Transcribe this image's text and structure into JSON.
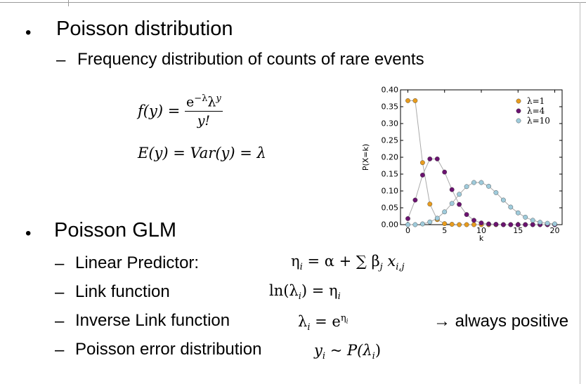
{
  "bullets": [
    {
      "title": "Poisson distribution",
      "sub": [
        "Frequency distribution of counts of rare events"
      ]
    },
    {
      "title": "Poisson GLM",
      "sub": [
        "Linear Predictor:",
        "Link function",
        "Inverse Link function",
        "Poisson error distribution"
      ]
    }
  ],
  "bullet_symbol": "•",
  "dash_symbol": "–",
  "formulas": {
    "fy_lhs": "f(y) =",
    "fy_num": "e",
    "fy_num_sup": "−λ",
    "fy_num_lambda": "λ",
    "fy_num_sup2": "y",
    "fy_den": "y!",
    "ey": "E(y) = Var(y) = λ",
    "linear": "η",
    "linear_sub": "i",
    "linear_rest": " = α + ∑ β",
    "linear_bj": "j",
    "linear_x": " x",
    "linear_xsub": "i,j",
    "link": "ln(λ",
    "link_sub": "i",
    "link_rest": ") = η",
    "link_sub2": "i",
    "inverse": "λ",
    "inverse_sub": "i",
    "inverse_rest": " = e",
    "inverse_sup": "η",
    "inverse_supsub": "i",
    "error": "y",
    "error_sub": "i",
    "error_rest": " ~ P(λ",
    "error_sub2": "i",
    "error_close": ")"
  },
  "note": "→ always positive",
  "chart_data": {
    "type": "line",
    "xlabel": "k",
    "ylabel": "P(X=k)",
    "xlim": [
      -1,
      21
    ],
    "ylim": [
      0,
      0.4
    ],
    "xticks": [
      0,
      5,
      10,
      15,
      20
    ],
    "yticks": [
      0.0,
      0.05,
      0.1,
      0.15,
      0.2,
      0.25,
      0.3,
      0.35,
      0.4
    ],
    "ytick_labels": [
      "0.00",
      "0.05",
      "0.10",
      "0.15",
      "0.20",
      "0.25",
      "0.30",
      "0.35",
      "0.40"
    ],
    "legend_position": "top-right",
    "line_color": "#aaaaaa",
    "series": [
      {
        "name": "λ=1",
        "color": "#e89c1e",
        "marker": "circle",
        "x": [
          0,
          1,
          2,
          3,
          4,
          5,
          6,
          7,
          8,
          9,
          10,
          11,
          12,
          13,
          14,
          15,
          16,
          17,
          18,
          19,
          20
        ],
        "y": [
          0.368,
          0.368,
          0.184,
          0.061,
          0.015,
          0.003,
          0.001,
          0,
          0,
          0,
          0,
          0,
          0,
          0,
          0,
          0,
          0,
          0,
          0,
          0,
          0
        ]
      },
      {
        "name": "λ=4",
        "color": "#6b1370",
        "marker": "circle",
        "x": [
          0,
          1,
          2,
          3,
          4,
          5,
          6,
          7,
          8,
          9,
          10,
          11,
          12,
          13,
          14,
          15,
          16,
          17,
          18,
          19,
          20
        ],
        "y": [
          0.018,
          0.073,
          0.147,
          0.195,
          0.195,
          0.156,
          0.104,
          0.06,
          0.03,
          0.013,
          0.005,
          0.002,
          0.001,
          0,
          0,
          0,
          0,
          0,
          0,
          0,
          0
        ]
      },
      {
        "name": "λ=10",
        "color": "#9fcbdb",
        "marker": "circle",
        "x": [
          0,
          1,
          2,
          3,
          4,
          5,
          6,
          7,
          8,
          9,
          10,
          11,
          12,
          13,
          14,
          15,
          16,
          17,
          18,
          19,
          20
        ],
        "y": [
          0,
          0,
          0.002,
          0.008,
          0.019,
          0.038,
          0.063,
          0.09,
          0.113,
          0.125,
          0.125,
          0.114,
          0.095,
          0.073,
          0.052,
          0.035,
          0.022,
          0.013,
          0.007,
          0.004,
          0.002
        ]
      }
    ]
  }
}
